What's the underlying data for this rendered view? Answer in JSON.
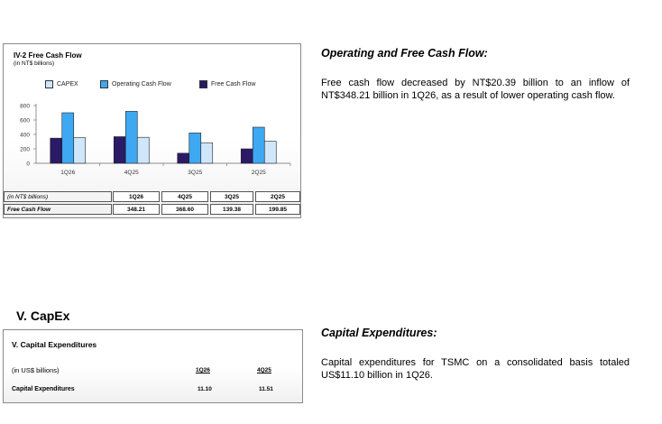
{
  "fcf_chart": {
    "title": "IV-2 Free Cash Flow",
    "subtitle": "(in NT$ billions)",
    "legend": [
      "CAPEX",
      "Operating Cash Flow",
      "Free Cash Flow"
    ],
    "colors": {
      "capex": "#cfe6fb",
      "ocf": "#3ea9f2",
      "fcf": "#2b1a66"
    },
    "chart_data": {
      "type": "bar",
      "categories": [
        "1Q26",
        "4Q25",
        "3Q25",
        "2Q25"
      ],
      "series": [
        {
          "name": "Free Cash Flow",
          "values": [
            348.21,
            368.6,
            139.38,
            199.85
          ]
        },
        {
          "name": "Operating Cash Flow",
          "values": [
            700,
            720,
            420,
            500
          ]
        },
        {
          "name": "CAPEX",
          "values": [
            355,
            360,
            285,
            305
          ]
        }
      ],
      "ylim": [
        0,
        800
      ],
      "yticks": [
        0,
        200,
        400,
        600,
        800
      ]
    },
    "table": {
      "header_label": "(in NT$ billions)",
      "row_label": "Free Cash Flow",
      "periods": [
        "1Q26",
        "4Q25",
        "3Q25",
        "2Q25"
      ],
      "values": [
        "348.21",
        "368.60",
        "139.38",
        "199.85"
      ]
    }
  },
  "ocf_section": {
    "heading": "Operating and Free Cash Flow:",
    "text": "Free cash flow decreased by NT$20.39 billion to an inflow of NT$348.21 billion in 1Q26, as a result of lower operating cash flow."
  },
  "capex": {
    "section_title": "V. CapEx",
    "panel_title": "V. Capital Expenditures",
    "unit_label": "(in US$ billions)",
    "row_label": "Capital Expenditures",
    "periods": [
      "1Q26",
      "4Q25"
    ],
    "values": [
      "11.10",
      "11.51"
    ]
  },
  "capex_section": {
    "heading": "Capital Expenditures:",
    "text": "Capital expenditures for TSMC on a consolidated basis totaled US$11.10 billion in 1Q26."
  }
}
